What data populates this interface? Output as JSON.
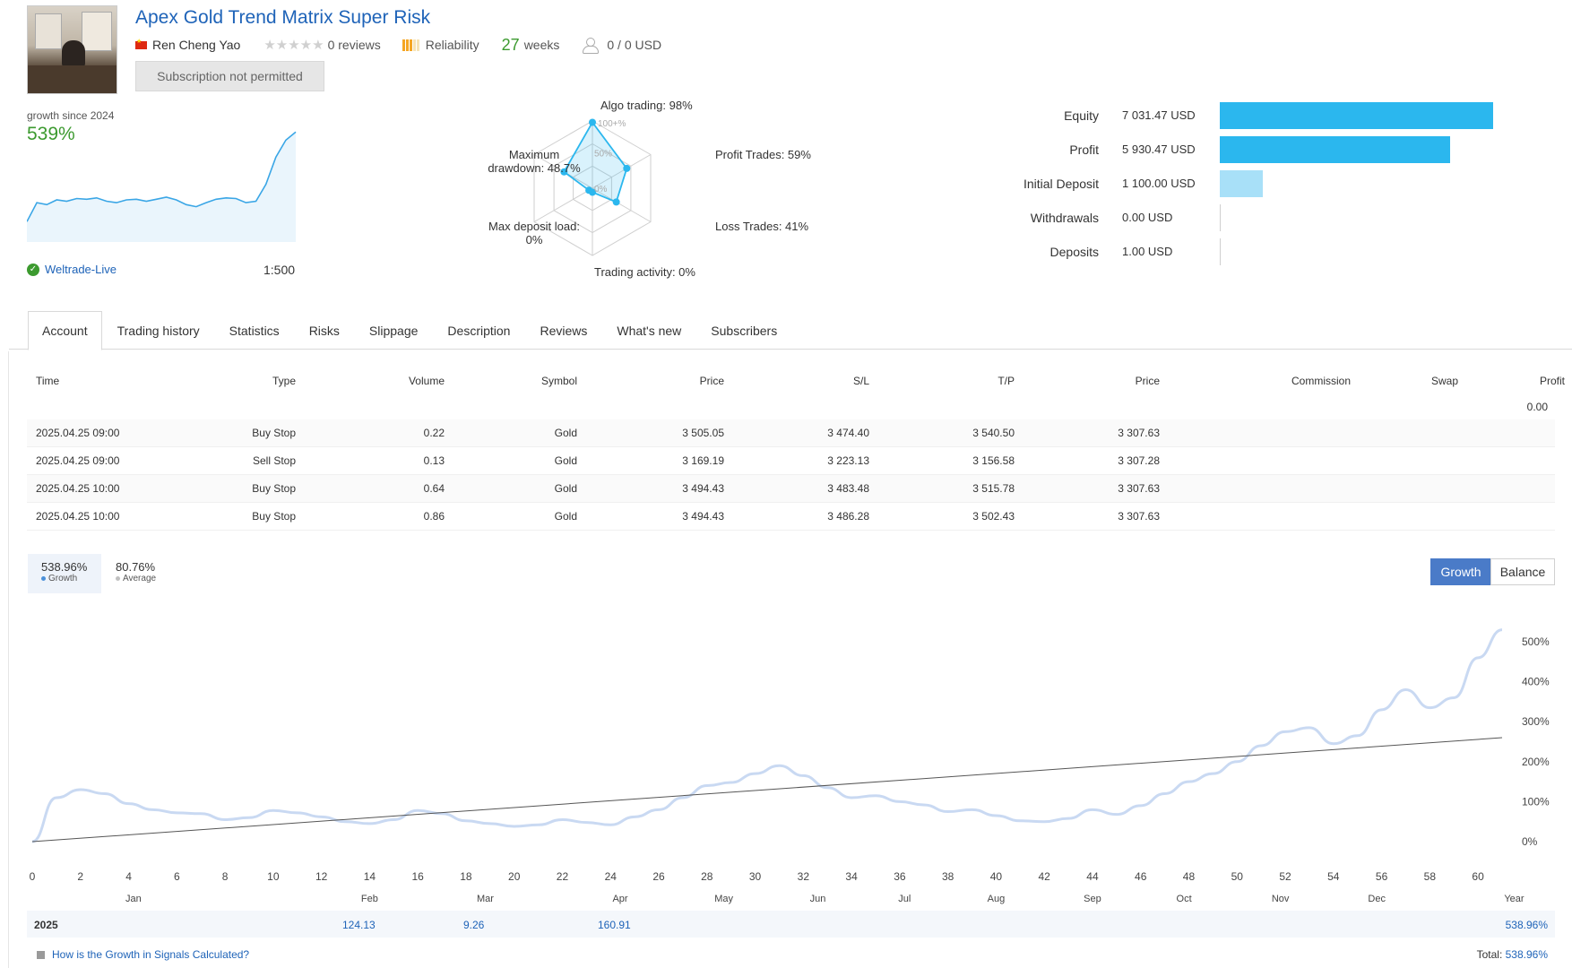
{
  "header": {
    "title": "Apex Gold Trend Matrix Super Risk",
    "author": "Ren Cheng Yao",
    "stars": "★★★★★",
    "reviews": "0 reviews",
    "reliability_label": "Reliability",
    "weeks_value": "27",
    "weeks_label": "weeks",
    "subscribers": "0 / 0 USD",
    "subscribe_button": "Subscription not permitted"
  },
  "summary": {
    "growth_label": "growth since 2024",
    "growth_value": "539%",
    "broker": "Weltrade-Live",
    "leverage": "1:500",
    "mini_chart": [
      30,
      58,
      55,
      62,
      60,
      64,
      63,
      65,
      60,
      58,
      62,
      63,
      60,
      63,
      66,
      62,
      55,
      52,
      58,
      63,
      65,
      64,
      58,
      60,
      85,
      125,
      150,
      162
    ]
  },
  "radar": {
    "algo_trading": "Algo trading: 98%",
    "profit_trades": "Profit Trades: 59%",
    "loss_trades": "Loss Trades: 41%",
    "trading_activity": "Trading activity: 0%",
    "max_deposit_load_1": "Max deposit load:",
    "max_deposit_load_2": "0%",
    "max_drawdown_1": "Maximum",
    "max_drawdown_2": "drawdown: 48.7%",
    "ring_100": "100+%",
    "ring_50": "50%",
    "ring_0": "0%",
    "values": [
      98,
      59,
      41,
      0,
      0,
      48.7
    ]
  },
  "account_bars": [
    {
      "label": "Equity",
      "value": "7 031.47 USD",
      "amount": 7031.47,
      "style": "dark"
    },
    {
      "label": "Profit",
      "value": "5 930.47 USD",
      "amount": 5930.47,
      "style": "dark"
    },
    {
      "label": "Initial Deposit",
      "value": "1 100.00 USD",
      "amount": 1100.0,
      "style": "light"
    },
    {
      "label": "Withdrawals",
      "value": "0.00 USD",
      "amount": 0,
      "style": "zero"
    },
    {
      "label": "Deposits",
      "value": "1.00 USD",
      "amount": 1.0,
      "style": "zero"
    }
  ],
  "tabs": [
    "Account",
    "Trading history",
    "Statistics",
    "Risks",
    "Slippage",
    "Description",
    "Reviews",
    "What's new",
    "Subscribers"
  ],
  "table": {
    "headers": [
      "Time",
      "Type",
      "Volume",
      "Symbol",
      "Price",
      "S/L",
      "T/P",
      "Price",
      "Commission",
      "Swap",
      "Profit"
    ],
    "total_profit": "0.00",
    "rows": [
      [
        "2025.04.25 09:00",
        "Buy Stop",
        "0.22",
        "Gold",
        "3 505.05",
        "3 474.40",
        "3 540.50",
        "3 307.63"
      ],
      [
        "2025.04.25 09:00",
        "Sell Stop",
        "0.13",
        "Gold",
        "3 169.19",
        "3 223.13",
        "3 156.58",
        "3 307.28"
      ],
      [
        "2025.04.25 10:00",
        "Buy Stop",
        "0.64",
        "Gold",
        "3 494.43",
        "3 483.48",
        "3 515.78",
        "3 307.63"
      ],
      [
        "2025.04.25 10:00",
        "Buy Stop",
        "0.86",
        "Gold",
        "3 494.43",
        "3 486.28",
        "3 502.43",
        "3 307.63"
      ]
    ]
  },
  "growth_chart": {
    "stat1_value": "538.96%",
    "stat1_label": "Growth",
    "stat2_value": "80.76%",
    "stat2_label": "Average",
    "toggle_growth": "Growth",
    "toggle_balance": "Balance",
    "colors": {
      "line": "#c9d9f2",
      "trend": "#555555"
    }
  },
  "chart_data": {
    "type": "line",
    "x_ticks": [
      "0",
      "2",
      "4",
      "6",
      "8",
      "10",
      "12",
      "14",
      "16",
      "18",
      "20",
      "22",
      "24",
      "26",
      "28",
      "30",
      "32",
      "34",
      "36",
      "38",
      "40",
      "42",
      "44",
      "46",
      "48",
      "50",
      "52",
      "54",
      "56",
      "58",
      "60"
    ],
    "month_labels": [
      "Jan",
      "Feb",
      "Mar",
      "Apr",
      "May",
      "Jun",
      "Jul",
      "Aug",
      "Sep",
      "Oct",
      "Nov",
      "Dec",
      "Year"
    ],
    "y_ticks": [
      "500%",
      "400%",
      "300%",
      "200%",
      "100%",
      "0%"
    ],
    "ylim": [
      0,
      500
    ],
    "xlim": [
      0,
      61
    ],
    "series": [
      {
        "values": [
          [
            0,
            0
          ],
          [
            1,
            110
          ],
          [
            2,
            130
          ],
          [
            3,
            120
          ],
          [
            4,
            95
          ],
          [
            5,
            80
          ],
          [
            6,
            72
          ],
          [
            7,
            70
          ],
          [
            8,
            55
          ],
          [
            9,
            60
          ],
          [
            10,
            78
          ],
          [
            11,
            72
          ],
          [
            12,
            62
          ],
          [
            13,
            50
          ],
          [
            14,
            45
          ],
          [
            15,
            55
          ],
          [
            16,
            78
          ],
          [
            17,
            70
          ],
          [
            18,
            52
          ],
          [
            19,
            45
          ],
          [
            20,
            38
          ],
          [
            21,
            42
          ],
          [
            22,
            55
          ],
          [
            23,
            48
          ],
          [
            24,
            42
          ],
          [
            25,
            62
          ],
          [
            26,
            80
          ],
          [
            27,
            110
          ],
          [
            28,
            140
          ],
          [
            29,
            148
          ],
          [
            30,
            170
          ],
          [
            31,
            190
          ],
          [
            32,
            165
          ],
          [
            33,
            135
          ],
          [
            34,
            110
          ],
          [
            35,
            115
          ],
          [
            36,
            100
          ],
          [
            37,
            92
          ],
          [
            38,
            75
          ],
          [
            39,
            80
          ],
          [
            40,
            65
          ],
          [
            41,
            52
          ],
          [
            42,
            50
          ],
          [
            43,
            58
          ],
          [
            44,
            80
          ],
          [
            45,
            68
          ],
          [
            46,
            90
          ],
          [
            47,
            120
          ],
          [
            48,
            150
          ],
          [
            49,
            170
          ],
          [
            50,
            200
          ],
          [
            51,
            240
          ],
          [
            52,
            275
          ],
          [
            53,
            285
          ],
          [
            54,
            245
          ],
          [
            55,
            265
          ],
          [
            56,
            330
          ],
          [
            57,
            380
          ],
          [
            58,
            335
          ],
          [
            59,
            360
          ],
          [
            60,
            460
          ],
          [
            61,
            530
          ]
        ]
      }
    ],
    "trend": [
      [
        0,
        0
      ],
      [
        61,
        260
      ]
    ]
  },
  "year_row": {
    "year": "2025",
    "v1": "124.13",
    "v2": "9.26",
    "v3": "160.91",
    "year_total": "538.96%"
  },
  "footer": {
    "help_link": "How is the Growth in Signals Calculated?",
    "total_label": "Total:",
    "total_value": "538.96%"
  }
}
